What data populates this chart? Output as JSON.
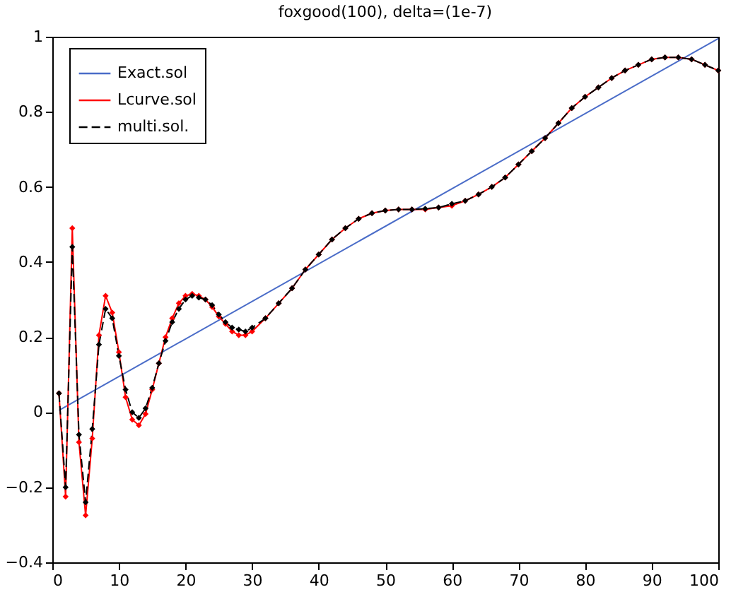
{
  "chart_data": {
    "type": "line",
    "title": "foxgood(100), delta=(1e-7)",
    "xlim": [
      0,
      100
    ],
    "ylim": [
      -0.4,
      1
    ],
    "xticks": [
      0,
      10,
      20,
      30,
      40,
      50,
      60,
      70,
      80,
      90,
      100
    ],
    "yticks": [
      -0.4,
      -0.2,
      0,
      0.2,
      0.4,
      0.6,
      0.8,
      1
    ],
    "grid": false,
    "legend": "top left",
    "x": [
      1,
      2,
      3,
      4,
      5,
      6,
      7,
      8,
      9,
      10,
      11,
      12,
      13,
      14,
      15,
      16,
      17,
      18,
      19,
      20,
      21,
      22,
      23,
      24,
      25,
      26,
      27,
      28,
      29,
      30,
      32,
      34,
      36,
      38,
      40,
      42,
      44,
      46,
      48,
      50,
      52,
      54,
      56,
      58,
      60,
      62,
      64,
      66,
      68,
      70,
      72,
      74,
      76,
      78,
      80,
      82,
      84,
      86,
      88,
      90,
      92,
      94,
      96,
      98,
      100
    ],
    "series": [
      {
        "name": "Exact.sol",
        "color": "#4a6cc8",
        "marker": "none",
        "line_style": "solid",
        "x": [
          1,
          100
        ],
        "values": [
          0.005,
          0.995
        ]
      },
      {
        "name": "Lcurve.sol",
        "color": "#ff0000",
        "marker": "diamond",
        "line_style": "solid",
        "values": [
          0.05,
          -0.225,
          0.49,
          -0.08,
          -0.275,
          -0.07,
          0.205,
          0.31,
          0.265,
          0.16,
          0.04,
          -0.02,
          -0.035,
          -0.005,
          0.06,
          0.13,
          0.2,
          0.25,
          0.29,
          0.31,
          0.315,
          0.31,
          0.3,
          0.28,
          0.255,
          0.235,
          0.215,
          0.205,
          0.205,
          0.215,
          0.25,
          0.29,
          0.33,
          0.38,
          0.42,
          0.46,
          0.49,
          0.515,
          0.53,
          0.537,
          0.54,
          0.54,
          0.54,
          0.545,
          0.55,
          0.563,
          0.58,
          0.6,
          0.625,
          0.66,
          0.695,
          0.73,
          0.77,
          0.81,
          0.84,
          0.865,
          0.89,
          0.91,
          0.925,
          0.94,
          0.945,
          0.945,
          0.94,
          0.925,
          0.91
        ]
      },
      {
        "name": "multi.sol.",
        "color": "#000000",
        "marker": "diamond",
        "line_style": "dashed",
        "values": [
          0.05,
          -0.2,
          0.44,
          -0.06,
          -0.24,
          -0.045,
          0.18,
          0.275,
          0.25,
          0.15,
          0.06,
          0.0,
          -0.015,
          0.01,
          0.065,
          0.13,
          0.19,
          0.24,
          0.275,
          0.3,
          0.31,
          0.305,
          0.3,
          0.285,
          0.26,
          0.24,
          0.225,
          0.22,
          0.215,
          0.225,
          0.25,
          0.29,
          0.33,
          0.38,
          0.42,
          0.46,
          0.49,
          0.515,
          0.53,
          0.537,
          0.54,
          0.54,
          0.542,
          0.545,
          0.555,
          0.563,
          0.58,
          0.6,
          0.625,
          0.66,
          0.695,
          0.73,
          0.77,
          0.81,
          0.84,
          0.865,
          0.89,
          0.91,
          0.925,
          0.94,
          0.945,
          0.945,
          0.94,
          0.925,
          0.91
        ]
      }
    ]
  }
}
